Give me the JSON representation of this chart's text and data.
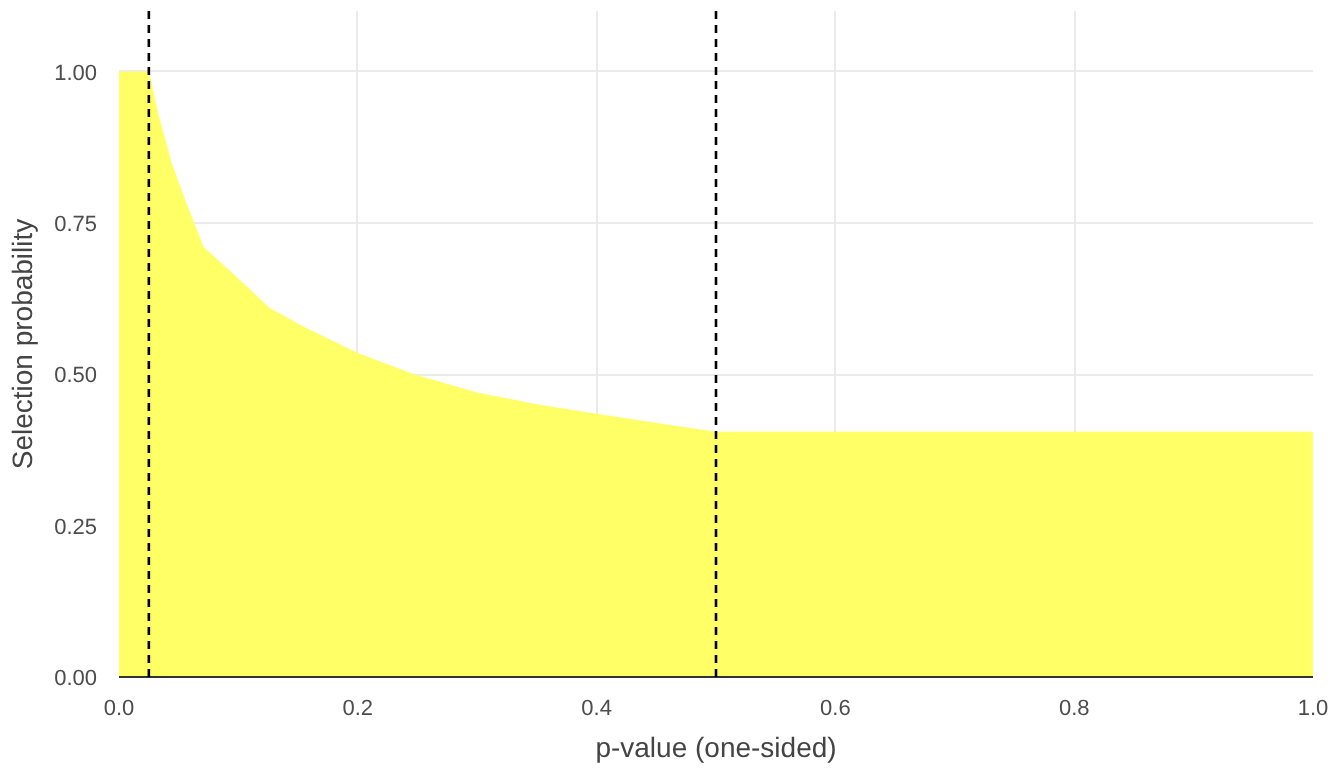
{
  "chart_data": {
    "type": "area",
    "xlabel": "p-value (one-sided)",
    "ylabel": "Selection probability",
    "x": [
      0,
      0.025,
      0.033,
      0.044,
      0.055,
      0.071,
      0.099,
      0.126,
      0.153,
      0.2,
      0.247,
      0.3,
      0.351,
      0.4,
      0.449,
      0.5,
      1.0
    ],
    "series": [
      {
        "color": "#ffff66",
        "values": [
          1.0,
          1.0,
          0.93,
          0.85,
          0.79,
          0.71,
          0.66,
          0.61,
          0.58,
          0.535,
          0.5,
          0.47,
          0.45,
          0.435,
          0.42,
          0.405,
          0.405
        ]
      }
    ],
    "xlim": [
      0,
      1
    ],
    "ylim": [
      0,
      1.1
    ],
    "xticks": [
      {
        "value": 0,
        "label": "0.0"
      },
      0.2,
      0.4,
      0.6,
      0.8,
      {
        "value": 1,
        "label": "1.0"
      }
    ],
    "yticks": [
      {
        "value": 0,
        "label": "0.00"
      },
      0.25,
      {
        "value": 0.5,
        "label": "0.50"
      },
      0.75,
      {
        "value": 1,
        "label": "1.00"
      }
    ],
    "ref_lines": [
      {
        "axis": "x",
        "value": 0.025,
        "color": "#000000",
        "line_style": "dashed"
      },
      {
        "axis": "x",
        "value": 0.5,
        "color": "#000000",
        "line_style": "dashed"
      }
    ],
    "grid": true
  }
}
